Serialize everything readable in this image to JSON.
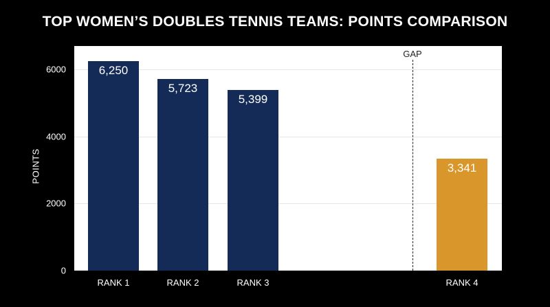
{
  "chart_data": {
    "type": "bar",
    "title": "TOP WOMEN’S DOUBLES TENNIS TEAMS: POINTS COMPARISON",
    "xlabel": "",
    "ylabel": "POINTS",
    "ylim": [
      0,
      6700
    ],
    "yticks": [
      0,
      2000,
      4000,
      6000
    ],
    "ytick_labels": [
      "0",
      "2000",
      "4000",
      "6000"
    ],
    "grid": true,
    "categories": [
      "RANK 1",
      "RANK 2",
      "RANK 3",
      "RANK 4"
    ],
    "values": [
      6250,
      5723,
      5399,
      3341
    ],
    "value_labels": [
      "6,250",
      "5,723",
      "5,399",
      "3,341"
    ],
    "bar_colors": [
      "#142b57",
      "#142b57",
      "#142b57",
      "#d9962a"
    ],
    "annotation": {
      "text": "GAP",
      "style": "dashed vertical line between RANK 3 and RANK 4"
    }
  }
}
